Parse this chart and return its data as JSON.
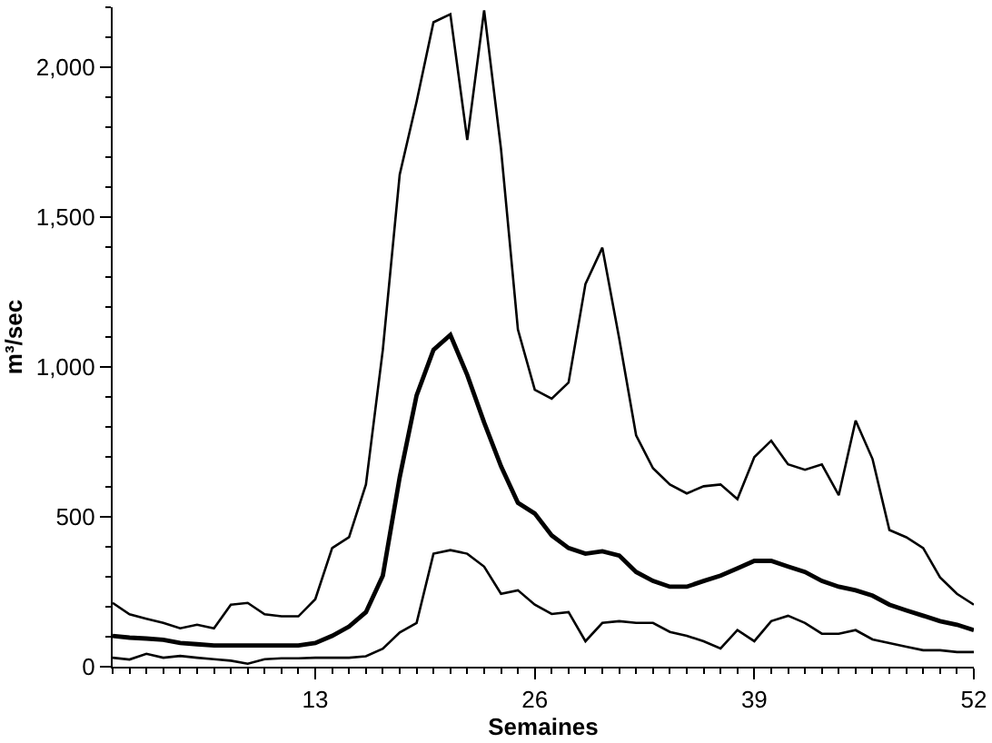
{
  "chart_data": {
    "type": "line",
    "xlabel": "Semaines",
    "ylabel": "m³/sec",
    "x": [
      1,
      2,
      3,
      4,
      5,
      6,
      7,
      8,
      9,
      10,
      11,
      12,
      13,
      14,
      15,
      16,
      17,
      18,
      19,
      20,
      21,
      22,
      23,
      24,
      25,
      26,
      27,
      28,
      29,
      30,
      31,
      32,
      33,
      34,
      35,
      36,
      37,
      38,
      39,
      40,
      41,
      42,
      43,
      44,
      45,
      46,
      47,
      48,
      49,
      50,
      51,
      52
    ],
    "series": [
      {
        "color": "#000000",
        "values": [
          213,
          175,
          160,
          146,
          128,
          140,
          128,
          207,
          213,
          175,
          168,
          168,
          225,
          396,
          432,
          608,
          1057,
          1642,
          1885,
          2150,
          2177,
          1757,
          2190,
          1727,
          1125,
          924,
          894,
          948,
          1277,
          1398,
          1095,
          772,
          662,
          608,
          578,
          602,
          608,
          559,
          699,
          754,
          675,
          657,
          675,
          572,
          821,
          693,
          456,
          432,
          396,
          298,
          243,
          207
        ]
      },
      {
        "color": "#000000",
        "values": [
          103,
          97,
          94,
          90,
          79,
          75,
          71,
          71,
          71,
          71,
          71,
          71,
          79,
          103,
          134,
          182,
          304,
          632,
          905,
          1057,
          1107,
          973,
          815,
          669,
          547,
          511,
          438,
          396,
          377,
          385,
          371,
          316,
          286,
          267,
          267,
          286,
          304,
          328,
          353,
          353,
          334,
          316,
          286,
          267,
          255,
          237,
          207,
          188,
          170,
          152,
          140,
          122
        ]
      },
      {
        "color": "#000000",
        "values": [
          30,
          24,
          43,
          30,
          36,
          30,
          25,
          20,
          10,
          25,
          28,
          28,
          30,
          30,
          30,
          35,
          60,
          114,
          146,
          377,
          389,
          377,
          334,
          243,
          255,
          207,
          176,
          182,
          85,
          146,
          152,
          146,
          146,
          116,
          103,
          85,
          61,
          122,
          85,
          152,
          170,
          146,
          110,
          110,
          122,
          91,
          79,
          67,
          55,
          55,
          49,
          49
        ]
      }
    ],
    "xlim": [
      1,
      52
    ],
    "xticks": [
      13,
      26,
      39,
      52
    ],
    "ylim": [
      0,
      2200
    ],
    "yticks": [
      0,
      500,
      {
        "value": 1000,
        "label": "1,000"
      },
      {
        "value": 1500,
        "label": "1,500"
      },
      {
        "value": 2000,
        "label": "2,000"
      }
    ],
    "marker": "none",
    "line_style": "solid"
  }
}
